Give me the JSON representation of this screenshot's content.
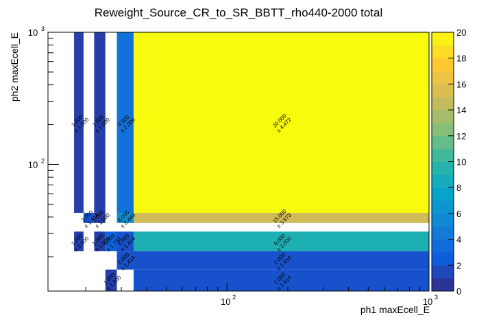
{
  "chart_data": {
    "type": "heatmap",
    "title": "Reweight_Source_CR_to_SR_BBTT_rho440-2000 total",
    "xlabel": "ph1 maxEcell_E",
    "ylabel": "ph2 maxEcell_E",
    "xscale": "log",
    "yscale": "log",
    "xlim": [
      13,
      1000
    ],
    "ylim": [
      11,
      1000
    ],
    "zlim": [
      0,
      20
    ],
    "x_ticks": [
      {
        "value": 100,
        "base": "10",
        "exp": "2"
      },
      {
        "value": 1000,
        "base": "10",
        "exp": "3"
      }
    ],
    "y_ticks": [
      {
        "value": 100,
        "base": "10",
        "exp": "2"
      },
      {
        "value": 1000,
        "base": "10",
        "exp": "3"
      }
    ],
    "z_ticks": [
      "0",
      "2",
      "4",
      "6",
      "8",
      "10",
      "12",
      "14",
      "16",
      "18",
      "20"
    ],
    "palette": [
      "#352a87",
      "#0f5cdd",
      "#1481d6",
      "#06a4ca",
      "#2eb7a4",
      "#87bf77",
      "#d1bb59",
      "#fec832",
      "#f9fb0e"
    ],
    "cells": [
      {
        "x0": 17.5,
        "x1": 19.5,
        "y0": 43,
        "y1": 1000,
        "z": 1,
        "label": "1.000",
        "err": "± 1.000"
      },
      {
        "x0": 22,
        "x1": 25,
        "y0": 43,
        "y1": 1000,
        "z": 1,
        "label": "1.000",
        "err": "± 1.000"
      },
      {
        "x0": 28.5,
        "x1": 34.5,
        "y0": 43,
        "y1": 1000,
        "z": 4,
        "label": "4.000",
        "err": "± 2.000"
      },
      {
        "x0": 34.5,
        "x1": 1000,
        "y0": 43,
        "y1": 1000,
        "z": 20,
        "label": "20.000",
        "err": "± 4.472"
      },
      {
        "x0": 19.5,
        "x1": 22,
        "y0": 36,
        "y1": 43,
        "z": 2,
        "label": "2.000",
        "err": "± 1.414"
      },
      {
        "x0": 22,
        "x1": 25,
        "y0": 36,
        "y1": 43,
        "z": 1,
        "label": "1.000",
        "err": "± 1.000"
      },
      {
        "x0": 28.5,
        "x1": 34.5,
        "y0": 36,
        "y1": 43,
        "z": 6,
        "label": "6.000",
        "err": "± 2.449"
      },
      {
        "x0": 34.5,
        "x1": 1000,
        "y0": 36,
        "y1": 43,
        "z": 15,
        "label": "15.000",
        "err": "± 3.873"
      },
      {
        "x0": 17.5,
        "x1": 19.5,
        "y0": 22,
        "y1": 31,
        "z": 1,
        "label": "1.000",
        "err": "± 1.000"
      },
      {
        "x0": 22,
        "x1": 25,
        "y0": 22,
        "y1": 31,
        "z": 1,
        "label": "1.000",
        "err": "± 1.000"
      },
      {
        "x0": 25,
        "x1": 28.5,
        "y0": 22,
        "y1": 31,
        "z": 3,
        "label": "3.000",
        "err": "± 1.732"
      },
      {
        "x0": 28.5,
        "x1": 34.5,
        "y0": 22,
        "y1": 31,
        "z": 2,
        "label": "2.000",
        "err": "± 1.414"
      },
      {
        "x0": 34.5,
        "x1": 1000,
        "y0": 22,
        "y1": 31,
        "z": 9,
        "label": "9.000",
        "err": "± 3.000"
      },
      {
        "x0": 28.5,
        "x1": 34.5,
        "y0": 16,
        "y1": 22,
        "z": 2,
        "label": "2.000",
        "err": "± 1.414"
      },
      {
        "x0": 34.5,
        "x1": 1000,
        "y0": 16,
        "y1": 22,
        "z": 2,
        "label": "2.000",
        "err": "± 1.414"
      },
      {
        "x0": 25,
        "x1": 28.5,
        "y0": 11,
        "y1": 16,
        "z": 1,
        "label": "1.000",
        "err": "± 1.000"
      },
      {
        "x0": 34.5,
        "x1": 1000,
        "y0": 11,
        "y1": 16,
        "z": 2,
        "label": "2.000",
        "err": "± 1.414"
      }
    ]
  }
}
